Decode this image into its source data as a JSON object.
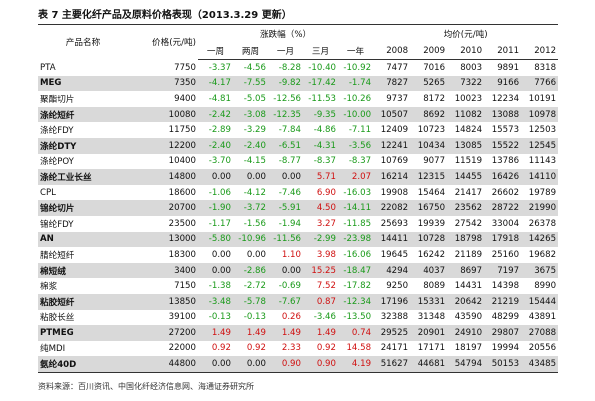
{
  "title": "表 7 主要化纤产品及原料价格表现（2013.3.29 更新）",
  "table": {
    "header_groups": [
      "产品名称",
      "价格(元/吨)",
      "涨跌幅（%）",
      "均价(元/吨)"
    ],
    "subheaders": [
      "一周",
      "两周",
      "一月",
      "三月",
      "一年",
      "2008",
      "2009",
      "2010",
      "2011",
      "2012"
    ],
    "rows": [
      [
        "PTA",
        "7750",
        "-3.37",
        "-4.56",
        "-8.28",
        "-10.40",
        "-10.92",
        "7477",
        "7016",
        "8003",
        "9891",
        "8318"
      ],
      [
        "MEG",
        "7350",
        "-4.17",
        "-7.55",
        "-9.82",
        "-17.42",
        "-1.74",
        "7827",
        "5265",
        "7322",
        "9166",
        "7766"
      ],
      [
        "聚酯切片",
        "9400",
        "-4.81",
        "-5.05",
        "-12.56",
        "-11.53",
        "-10.26",
        "9737",
        "8172",
        "10023",
        "12234",
        "10191"
      ],
      [
        "涤纶短纤",
        "10080",
        "-2.42",
        "-3.08",
        "-12.35",
        "-9.35",
        "-10.00",
        "10507",
        "8692",
        "11082",
        "13088",
        "10978"
      ],
      [
        "涤纶FDY",
        "11750",
        "-2.89",
        "-3.29",
        "-7.84",
        "-4.86",
        "-7.11",
        "12409",
        "10723",
        "14824",
        "15573",
        "12503"
      ],
      [
        "涤纶DTY",
        "12200",
        "-2.40",
        "-2.40",
        "-6.51",
        "-4.31",
        "-3.56",
        "12241",
        "10434",
        "13085",
        "15522",
        "12545"
      ],
      [
        "涤纶POY",
        "10400",
        "-3.70",
        "-4.15",
        "-8.77",
        "-8.37",
        "-8.37",
        "10769",
        "9077",
        "11519",
        "13786",
        "11143"
      ],
      [
        "涤纶工业长丝",
        "14800",
        "0.00",
        "0.00",
        "0.00",
        "5.71",
        "2.07",
        "16214",
        "12315",
        "14455",
        "16426",
        "14110"
      ],
      [
        "CPL",
        "18600",
        "-1.06",
        "-4.12",
        "-7.46",
        "6.90",
        "-16.03",
        "19908",
        "15464",
        "21417",
        "26602",
        "19789"
      ],
      [
        "锦纶切片",
        "20700",
        "-1.90",
        "-3.72",
        "-5.91",
        "4.50",
        "-14.11",
        "22082",
        "16750",
        "23562",
        "28722",
        "21990"
      ],
      [
        "锦纶FDY",
        "23500",
        "-1.17",
        "-1.56",
        "-1.94",
        "3.27",
        "-11.85",
        "25693",
        "19939",
        "27542",
        "33004",
        "26378"
      ],
      [
        "AN",
        "13000",
        "-5.80",
        "-10.96",
        "-11.56",
        "-2.99",
        "-23.98",
        "14411",
        "10728",
        "18798",
        "17918",
        "14265"
      ],
      [
        "腈纶短纤",
        "18300",
        "0.00",
        "0.00",
        "1.10",
        "3.98",
        "-16.06",
        "19645",
        "16242",
        "21189",
        "25160",
        "19682"
      ],
      [
        "棉短绒",
        "3400",
        "0.00",
        "-2.86",
        "0.00",
        "15.25",
        "-18.47",
        "4294",
        "4037",
        "8697",
        "7197",
        "3675"
      ],
      [
        "棉浆",
        "7150",
        "-1.38",
        "-2.72",
        "-0.69",
        "7.52",
        "-17.82",
        "9250",
        "8089",
        "14431",
        "14398",
        "8990"
      ],
      [
        "粘胶短纤",
        "13850",
        "-3.48",
        "-5.78",
        "-7.67",
        "0.87",
        "-12.34",
        "17196",
        "15331",
        "20642",
        "21219",
        "15444"
      ],
      [
        "粘胶长丝",
        "39100",
        "-0.13",
        "-0.13",
        "0.26",
        "-3.46",
        "-13.50",
        "32388",
        "31348",
        "43590",
        "48299",
        "43891"
      ],
      [
        "PTMEG",
        "27200",
        "1.49",
        "1.49",
        "1.49",
        "1.49",
        "0.74",
        "29525",
        "20901",
        "24910",
        "29807",
        "27088"
      ],
      [
        "纯MDI",
        "22000",
        "0.92",
        "0.92",
        "2.33",
        "0.92",
        "14.58",
        "24171",
        "17171",
        "18197",
        "19994",
        "20556"
      ],
      [
        "氨纶40D",
        "44800",
        "0.00",
        "0.00",
        "0.90",
        "0.90",
        "4.19",
        "51627",
        "44681",
        "54794",
        "50153",
        "43485"
      ]
    ]
  },
  "source": "资料来源：百川资讯、中国化纤经济信息网、海通证券研究所"
}
